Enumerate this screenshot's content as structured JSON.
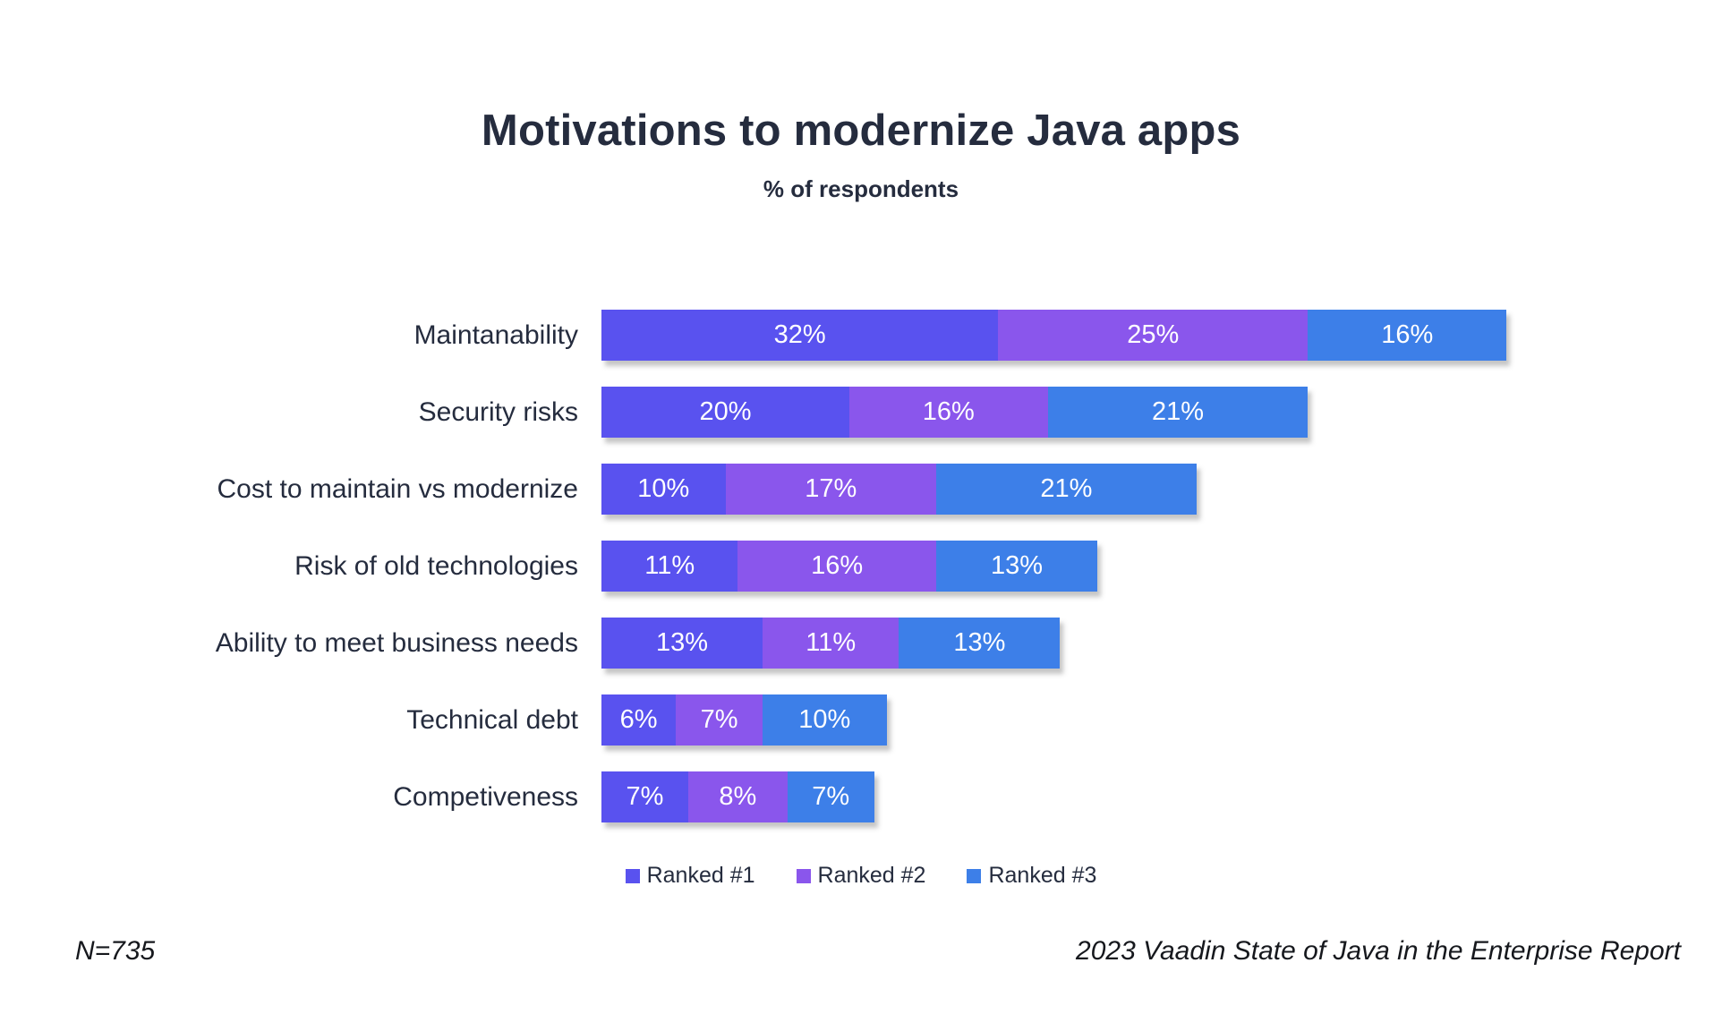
{
  "title": "Motivations to modernize Java apps",
  "subtitle": "% of respondents",
  "chart_data": {
    "type": "bar",
    "orientation": "horizontal",
    "stacked": true,
    "title": "Motivations to modernize Java apps",
    "subtitle": "% of respondents",
    "value_suffix": "%",
    "xlim": [
      0,
      73
    ],
    "grid": false,
    "legend_position": "bottom",
    "categories": [
      "Maintanability",
      "Security risks",
      "Cost to maintain vs modernize",
      "Risk of old technologies",
      "Ability to meet business needs",
      "Technical debt",
      "Competiveness"
    ],
    "series": [
      {
        "name": "Ranked #1",
        "color": "#5952ef",
        "values": [
          32,
          20,
          10,
          11,
          13,
          6,
          7
        ]
      },
      {
        "name": "Ranked #2",
        "color": "#8a56ec",
        "values": [
          25,
          16,
          17,
          16,
          11,
          7,
          8
        ]
      },
      {
        "name": "Ranked #3",
        "color": "#3d7fe8",
        "values": [
          16,
          21,
          21,
          13,
          13,
          10,
          7
        ]
      }
    ]
  },
  "footer": {
    "left": "N=735",
    "right": "2023 Vaadin State of Java in the Enterprise Report"
  },
  "colors": {
    "title_text": "#252c3e",
    "bar_value_text": "#ffffff",
    "background": "#ffffff"
  }
}
